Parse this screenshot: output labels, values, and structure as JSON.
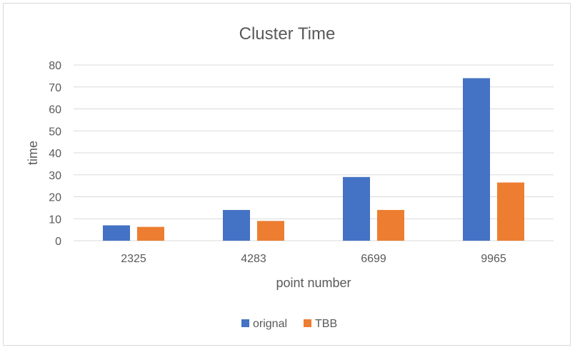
{
  "chart_data": {
    "type": "bar",
    "title": "Cluster Time",
    "xlabel": "point number",
    "ylabel": "time",
    "categories": [
      "2325",
      "4283",
      "6699",
      "9965"
    ],
    "series": [
      {
        "name": "orignal",
        "color": "#4472c4",
        "values": [
          7,
          14,
          29,
          74
        ]
      },
      {
        "name": "TBB",
        "color": "#ed7d31",
        "values": [
          6.3,
          9,
          14,
          26.5
        ]
      }
    ],
    "ylim": [
      0,
      80
    ],
    "yticks": [
      0,
      10,
      20,
      30,
      40,
      50,
      60,
      70,
      80
    ],
    "grid": true,
    "legend_position": "bottom"
  }
}
